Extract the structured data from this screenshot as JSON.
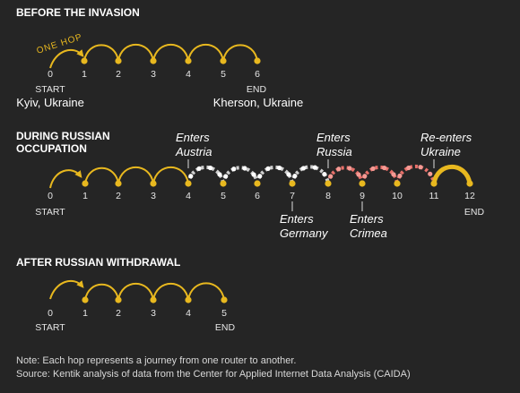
{
  "colors": {
    "background": "#252525",
    "gold": "#e8b81f",
    "gray": "#cfcfcf",
    "salmon": "#e8706a",
    "text": "#e6e6e6"
  },
  "before": {
    "title": "BEFORE THE INVASION",
    "hop_label": "ONE HOP",
    "numbers": [
      "0",
      "1",
      "2",
      "3",
      "4",
      "5",
      "6"
    ],
    "start": "START",
    "end": "END",
    "start_city": "Kyiv, Ukraine",
    "end_city": "Kherson, Ukraine"
  },
  "during": {
    "title_line1": "DURING RUSSIAN",
    "title_line2": "OCCUPATION",
    "numbers": [
      "0",
      "1",
      "2",
      "3",
      "4",
      "5",
      "6",
      "7",
      "8",
      "9",
      "10",
      "11",
      "12"
    ],
    "start": "START",
    "end": "END",
    "annotations": {
      "austria_1": "Enters",
      "austria_2": "Austria",
      "germany_1": "Enters",
      "germany_2": "Germany",
      "russia_1": "Enters",
      "russia_2": "Russia",
      "crimea_1": "Enters",
      "crimea_2": "Crimea",
      "ukraine_1": "Re-enters",
      "ukraine_2": "Ukraine"
    },
    "hop_colors": [
      "gold",
      "gold",
      "gold",
      "gold",
      "gray",
      "gray",
      "gray",
      "gray",
      "salmon",
      "salmon",
      "salmon",
      "gold"
    ]
  },
  "after": {
    "title": "AFTER RUSSIAN WITHDRAWAL",
    "numbers": [
      "0",
      "1",
      "2",
      "3",
      "4",
      "5"
    ],
    "start": "START",
    "end": "END"
  },
  "notes": {
    "note": "Note: Each hop represents a journey from one router to another.",
    "source": "Source: Kentik analysis of data from the Center for Applied Internet Data Analysis (CAIDA)"
  }
}
